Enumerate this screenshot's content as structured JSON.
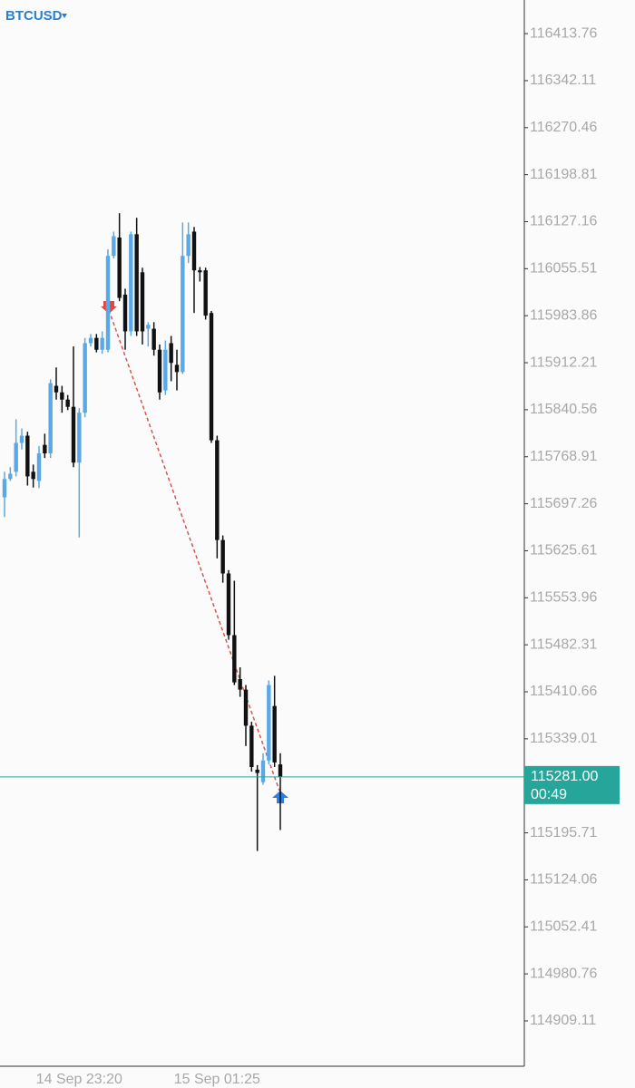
{
  "chart_data": {
    "type": "candlestick",
    "title": "BTCUSD",
    "categories": [
      null,
      null,
      null,
      null,
      null,
      null,
      null,
      null,
      null,
      null,
      null,
      null,
      null,
      "14 Sep 23:20",
      null,
      null,
      null,
      null,
      null,
      null,
      null,
      null,
      null,
      null,
      null,
      null,
      null,
      null,
      null,
      null,
      null,
      null,
      null,
      null,
      null,
      null,
      null,
      "15 Sep 01:25",
      null,
      null,
      null,
      null,
      null,
      null,
      null,
      null,
      null,
      null,
      null
    ],
    "open": [
      115707,
      115735,
      115746,
      115790,
      115801,
      115746,
      115732,
      115787,
      115774,
      115877,
      115867,
      115856,
      115845,
      115760,
      115836,
      115942,
      115950,
      115932,
      115932,
      116075,
      116103,
      116016,
      115960,
      116108,
      116050,
      115964,
      115964,
      115932,
      115870,
      115942,
      115909,
      115898,
      116075,
      116112,
      116053,
      116053,
      115988,
      115794,
      115642,
      115591,
      115497,
      115430,
      115414,
      115359,
      115292,
      115273,
      115306,
      115389,
      115300
    ],
    "high": [
      115746,
      115753,
      115826,
      115812,
      115807,
      115757,
      115785,
      115804,
      115887,
      115905,
      115877,
      115863,
      115937,
      115843,
      115950,
      115956,
      115956,
      115960,
      116085,
      116112,
      116140,
      116025,
      116112,
      116133,
      116057,
      115974,
      115974,
      115940,
      115946,
      115953,
      115932,
      116126,
      116126,
      116119,
      116058,
      116057,
      115991,
      115801,
      115649,
      115596,
      115580,
      115448,
      115421,
      115365,
      115299,
      115317,
      115428,
      115435,
      115317
    ],
    "low": [
      115677,
      115732,
      115739,
      115780,
      115725,
      115722,
      115721,
      115767,
      115767,
      115856,
      115836,
      115840,
      115753,
      115646,
      115829,
      115937,
      115928,
      115926,
      115928,
      116071,
      116006,
      115932,
      115953,
      115953,
      115940,
      115937,
      115923,
      115856,
      115863,
      115884,
      115870,
      115895,
      116064,
      115988,
      116036,
      115978,
      115790,
      115614,
      115577,
      115490,
      115421,
      115403,
      115328,
      115289,
      115168,
      115269,
      115300,
      115296,
      115200
    ],
    "close": [
      115735,
      115743,
      115790,
      115801,
      115739,
      115735,
      115774,
      115774,
      115881,
      115867,
      115856,
      115845,
      115760,
      115836,
      115942,
      115950,
      115932,
      115950,
      116075,
      116105,
      116011,
      115960,
      116108,
      115960,
      115960,
      115970,
      115932,
      115867,
      115932,
      115912,
      115898,
      116075,
      116108,
      116053,
      116050,
      115984,
      115794,
      115642,
      115591,
      115497,
      115425,
      115414,
      115359,
      115296,
      115287,
      115306,
      115421,
      115303,
      115281
    ],
    "up_color": "#5aa9e6",
    "down_color": "#111111",
    "ylim": [
      114840,
      116465
    ],
    "yticks": [
      116413.76,
      116342.11,
      116270.46,
      116198.81,
      116127.16,
      116055.51,
      115983.86,
      115912.21,
      115840.56,
      115768.91,
      115697.26,
      115625.61,
      115553.96,
      115482.31,
      115410.66,
      115339.01,
      115195.71,
      115124.06,
      115052.41,
      114980.76,
      114909.11
    ],
    "last_price": {
      "value": 115281,
      "label": "115281.00"
    },
    "countdown": "00:49",
    "last_price_color": "#26a69a"
  }
}
